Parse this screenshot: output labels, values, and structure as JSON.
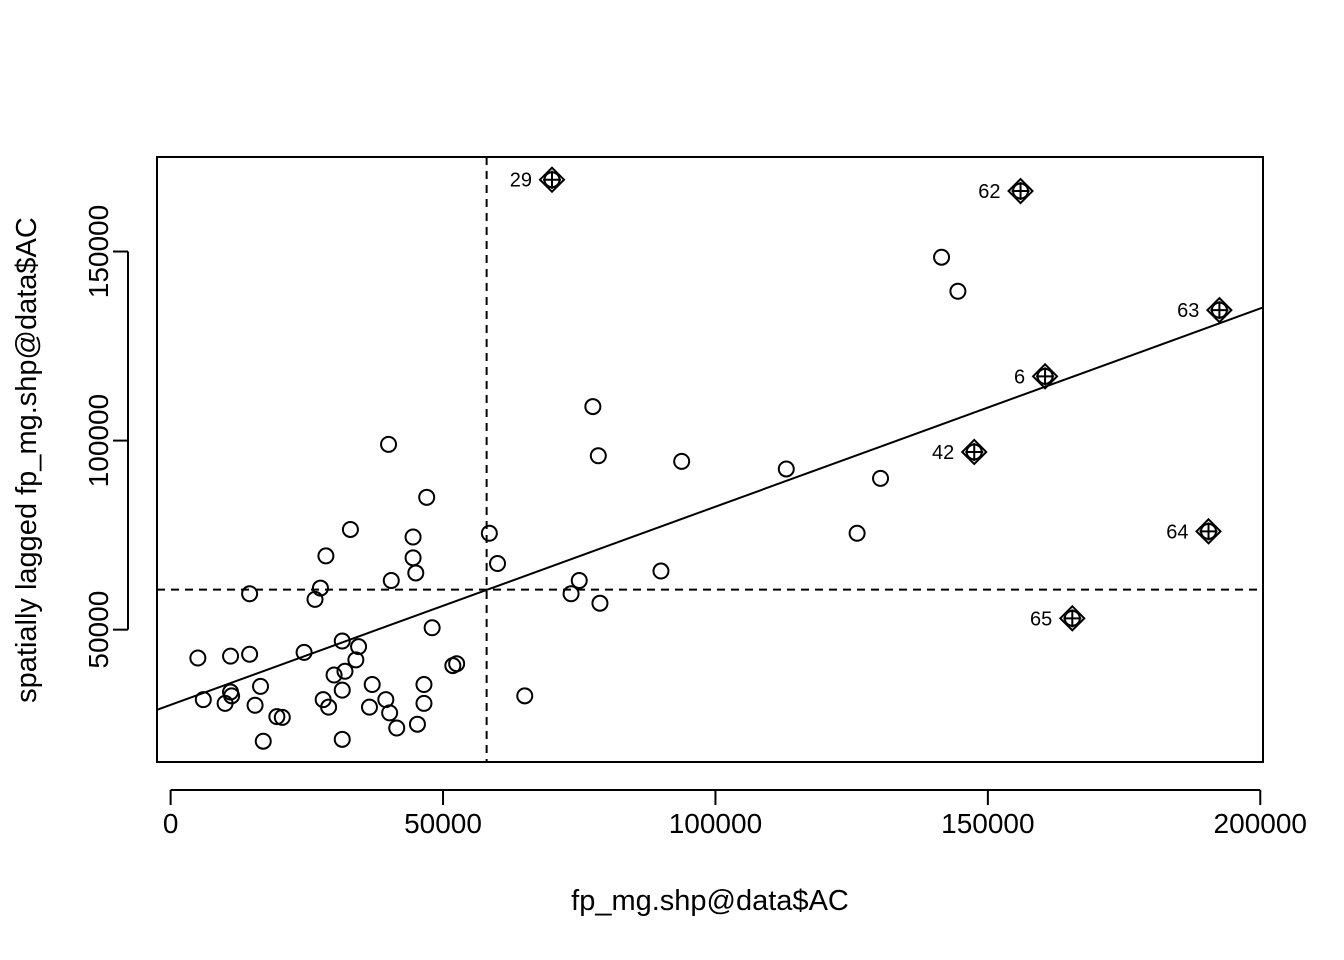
{
  "chart_data": {
    "type": "scatter",
    "title": "",
    "xlabel": "fp_mg.shp@data$AC",
    "ylabel": "spatially lagged fp_mg.shp@data$AC",
    "xlim": [
      -2500,
      200500
    ],
    "ylim": [
      15000,
      175000
    ],
    "x_ticks": [
      0,
      50000,
      100000,
      150000,
      200000
    ],
    "y_ticks": [
      50000,
      100000,
      150000
    ],
    "x_tick_labels": [
      "0",
      "50000",
      "100000",
      "150000",
      "200000"
    ],
    "y_tick_labels": [
      "50000",
      "100000",
      "150000"
    ],
    "mean_x": 58000,
    "mean_y": 60600,
    "regression_line": {
      "x0": -2500,
      "y0": 28800,
      "x1": 200500,
      "y1": 135200
    },
    "points": [
      {
        "x": 5000,
        "y": 42500
      },
      {
        "x": 6000,
        "y": 31500
      },
      {
        "x": 10000,
        "y": 30500
      },
      {
        "x": 11000,
        "y": 43000
      },
      {
        "x": 11000,
        "y": 33500
      },
      {
        "x": 11200,
        "y": 32500
      },
      {
        "x": 14500,
        "y": 59500
      },
      {
        "x": 14500,
        "y": 43500
      },
      {
        "x": 15500,
        "y": 30000
      },
      {
        "x": 16500,
        "y": 35000
      },
      {
        "x": 17000,
        "y": 20500
      },
      {
        "x": 19500,
        "y": 27000
      },
      {
        "x": 20500,
        "y": 26800
      },
      {
        "x": 24500,
        "y": 44000
      },
      {
        "x": 26500,
        "y": 58000
      },
      {
        "x": 27500,
        "y": 61000
      },
      {
        "x": 28000,
        "y": 31500
      },
      {
        "x": 28500,
        "y": 69500
      },
      {
        "x": 29000,
        "y": 29500
      },
      {
        "x": 30000,
        "y": 38000
      },
      {
        "x": 31500,
        "y": 47000
      },
      {
        "x": 31500,
        "y": 34000
      },
      {
        "x": 31500,
        "y": 21000
      },
      {
        "x": 32000,
        "y": 39000
      },
      {
        "x": 33000,
        "y": 76500
      },
      {
        "x": 34000,
        "y": 42000
      },
      {
        "x": 34500,
        "y": 45500
      },
      {
        "x": 36500,
        "y": 29500
      },
      {
        "x": 37000,
        "y": 35500
      },
      {
        "x": 39500,
        "y": 31500
      },
      {
        "x": 40000,
        "y": 99000
      },
      {
        "x": 40200,
        "y": 28000
      },
      {
        "x": 40500,
        "y": 63000
      },
      {
        "x": 41500,
        "y": 24000
      },
      {
        "x": 44500,
        "y": 74500
      },
      {
        "x": 44500,
        "y": 69000
      },
      {
        "x": 45000,
        "y": 65000
      },
      {
        "x": 45300,
        "y": 25000
      },
      {
        "x": 46500,
        "y": 35500
      },
      {
        "x": 46500,
        "y": 30500
      },
      {
        "x": 47000,
        "y": 85000
      },
      {
        "x": 48000,
        "y": 50500
      },
      {
        "x": 51800,
        "y": 40500
      },
      {
        "x": 52500,
        "y": 41000
      },
      {
        "x": 58500,
        "y": 75500
      },
      {
        "x": 60000,
        "y": 67500
      },
      {
        "x": 65000,
        "y": 32500
      },
      {
        "x": 73500,
        "y": 59500
      },
      {
        "x": 75000,
        "y": 63000
      },
      {
        "x": 77500,
        "y": 109000
      },
      {
        "x": 78500,
        "y": 96000
      },
      {
        "x": 78800,
        "y": 57000
      },
      {
        "x": 90000,
        "y": 65500
      },
      {
        "x": 93800,
        "y": 94500
      },
      {
        "x": 113000,
        "y": 92500
      },
      {
        "x": 126000,
        "y": 75500
      },
      {
        "x": 130300,
        "y": 90000
      },
      {
        "x": 141500,
        "y": 148500
      },
      {
        "x": 144500,
        "y": 139500
      }
    ],
    "influential_points": [
      {
        "label": "29",
        "x": 70000,
        "y": 169000
      },
      {
        "label": "62",
        "x": 156000,
        "y": 166000
      },
      {
        "label": "63",
        "x": 192500,
        "y": 134500
      },
      {
        "label": "6",
        "x": 160500,
        "y": 117000
      },
      {
        "label": "42",
        "x": 147500,
        "y": 97000
      },
      {
        "label": "64",
        "x": 190500,
        "y": 76000
      },
      {
        "label": "65",
        "x": 165500,
        "y": 53000
      }
    ]
  }
}
